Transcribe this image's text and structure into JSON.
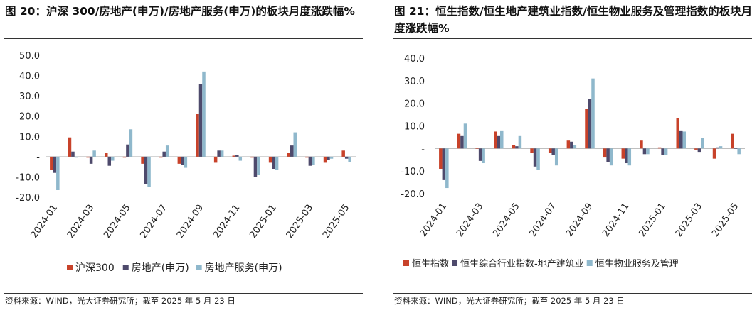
{
  "panels": [
    {
      "title": "图 20：沪深 300/房地产(申万)/房地产服务(申万)的板块月度涨跌幅%",
      "source": "资料来源：WIND，光大证券研究所；截至 2025 年 5 月 23 日"
    },
    {
      "title": "图 21：恒生指数/恒生地产建筑业指数/恒生物业服务及管理指数的板块月度涨跌幅%",
      "source": "资料来源：WIND，光大证券研究所；截至 2025 年 5 月 23 日"
    }
  ],
  "colors": {
    "series1": "#c8422a",
    "series2": "#4e4a6c",
    "series3": "#8fb8cc"
  },
  "chart_data": [
    {
      "type": "bar",
      "title": "沪深 300/房地产(申万)/房地产服务(申万)的板块月度涨跌幅%",
      "categories": [
        "2024-01",
        "2024-02",
        "2024-03",
        "2024-04",
        "2024-05",
        "2024-06",
        "2024-07",
        "2024-08",
        "2024-09",
        "2024-10",
        "2024-11",
        "2024-12",
        "2025-01",
        "2025-02",
        "2025-03",
        "2025-04",
        "2025-05"
      ],
      "x_tick_labels": [
        "2024-01",
        "2024-03",
        "2024-05",
        "2024-07",
        "2024-09",
        "2024-11",
        "2025-01",
        "2025-03",
        "2025-05"
      ],
      "y_tick_labels": [
        "50.0",
        "40.0",
        "30.0",
        "20.0",
        "10.0",
        "-",
        "-10.0",
        "-20.0"
      ],
      "ylim": [
        -20,
        50
      ],
      "series": [
        {
          "name": "沪深300",
          "values": [
            -6.5,
            9.5,
            -0.5,
            2.0,
            -0.5,
            -3.5,
            -0.5,
            -3.5,
            21.0,
            -3.0,
            0.5,
            -0.5,
            -3.0,
            2.0,
            -0.5,
            -3.0,
            3.0
          ]
        },
        {
          "name": "房地产(申万)",
          "values": [
            -8.0,
            2.5,
            -3.5,
            -4.5,
            6.0,
            -13.5,
            2.5,
            -4.0,
            36.0,
            3.0,
            1.0,
            -10.0,
            -6.0,
            5.5,
            -4.5,
            -1.5,
            -1.0
          ]
        },
        {
          "name": "房地产服务(申万)",
          "values": [
            -16.5,
            -0.5,
            3.0,
            -2.0,
            13.5,
            -15.0,
            5.5,
            -5.5,
            42.0,
            3.0,
            -2.0,
            -9.0,
            -6.5,
            12.0,
            -4.0,
            -1.0,
            -2.5
          ]
        }
      ]
    },
    {
      "type": "bar",
      "title": "恒生指数/恒生地产建筑业指数/恒生物业服务及管理指数的板块月度涨跌幅%",
      "categories": [
        "2024-01",
        "2024-02",
        "2024-03",
        "2024-04",
        "2024-05",
        "2024-06",
        "2024-07",
        "2024-08",
        "2024-09",
        "2024-10",
        "2024-11",
        "2024-12",
        "2025-01",
        "2025-02",
        "2025-03",
        "2025-04",
        "2025-05"
      ],
      "x_tick_labels": [
        "2024-01",
        "2024-03",
        "2024-05",
        "2024-07",
        "2024-09",
        "2024-11",
        "2025-01",
        "2025-03",
        "2025-05"
      ],
      "y_tick_labels": [
        "40.0",
        "30.0",
        "20.0",
        "10.0",
        "-",
        "-10.0",
        "-20.0"
      ],
      "ylim": [
        -20,
        40
      ],
      "series": [
        {
          "name": "恒生指数",
          "values": [
            -9.0,
            6.5,
            0.0,
            7.5,
            1.5,
            -2.0,
            -2.0,
            3.5,
            17.5,
            -4.0,
            -4.5,
            3.5,
            0.5,
            13.5,
            -0.5,
            -4.5,
            6.5
          ]
        },
        {
          "name": "恒生综合行业指数-地产建筑业",
          "values": [
            -14.0,
            5.5,
            -5.5,
            5.5,
            1.0,
            -8.0,
            -3.0,
            3.0,
            22.0,
            -6.0,
            -6.5,
            -2.5,
            -3.0,
            8.0,
            -1.5,
            0.5,
            0.0
          ]
        },
        {
          "name": "恒生物业服务及管理",
          "values": [
            -17.5,
            11.0,
            -6.5,
            8.0,
            5.5,
            -9.5,
            -7.5,
            1.5,
            31.0,
            -7.5,
            -7.5,
            -2.5,
            -3.0,
            7.5,
            4.5,
            1.0,
            -2.5
          ]
        }
      ]
    }
  ]
}
